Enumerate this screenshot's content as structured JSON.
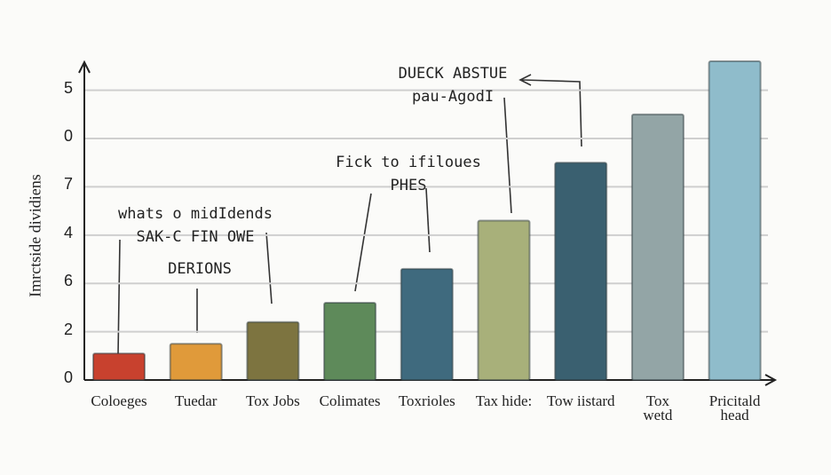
{
  "chart_data": {
    "type": "bar",
    "y_label": "Imrctside dividiens",
    "categories": [
      "Coloeges",
      "Tuedar",
      "Tox Jobs",
      "Colimates",
      "Toxrioles",
      "Tax hide:",
      "Tow iistard",
      "Tox\nwetd",
      "Pricitald\nhead"
    ],
    "values": [
      0.55,
      0.75,
      1.2,
      1.6,
      2.3,
      3.3,
      4.5,
      5.5,
      6.6
    ],
    "colors": [
      "#c8412e",
      "#e09a3a",
      "#7d7440",
      "#5e8a5a",
      "#3f6a7e",
      "#a8b07a",
      "#3a6070",
      "#93a5a6",
      "#8fbccb"
    ],
    "ylim": [
      0,
      6.6
    ],
    "yticks": [
      0,
      {
        "value": 1,
        "label": "2"
      },
      {
        "value": 2,
        "label": "6"
      },
      {
        "value": 3,
        "label": "4"
      },
      {
        "value": 4,
        "label": "7"
      },
      {
        "value": 5,
        "label": "0"
      },
      {
        "value": 6,
        "label": "5"
      }
    ],
    "grid": true,
    "annotations": [
      "whats o midIdends\nSAK-C FIN OWE",
      "DERIONS",
      "Fick to ifiloues\nPHES",
      "DUECK ABSTUE\npau-AgodI"
    ]
  }
}
